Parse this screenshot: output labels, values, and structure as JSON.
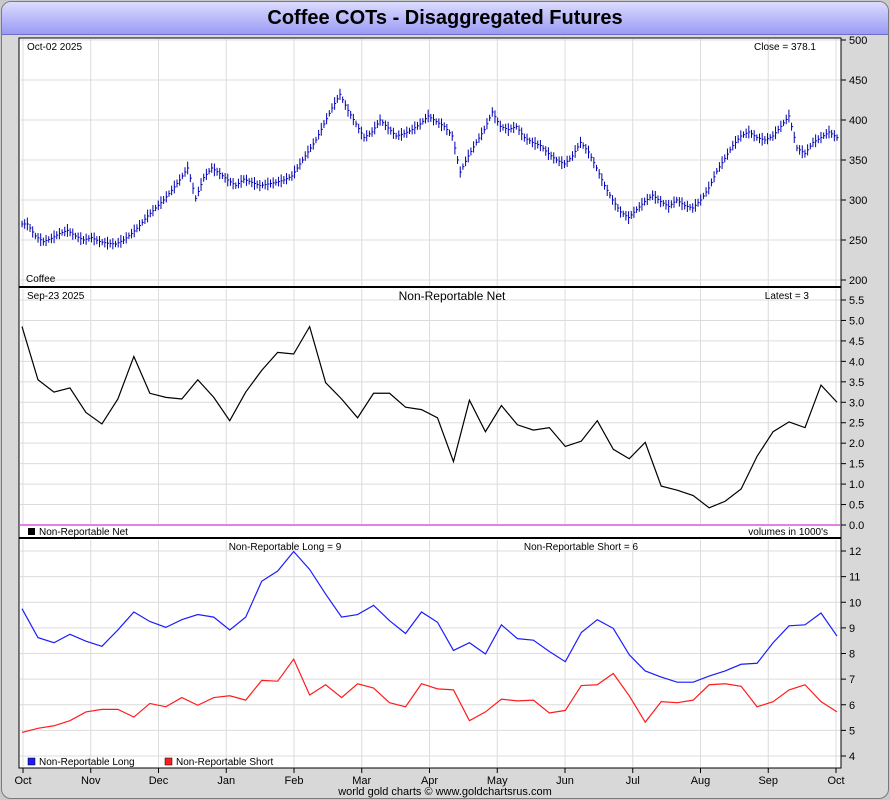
{
  "title": "Coffee COTs - Disaggregated Futures",
  "credit": "world gold charts © www.goldchartsrus.com",
  "x_axis": {
    "labels": [
      "Oct",
      "Nov",
      "Dec",
      "Jan",
      "Feb",
      "Mar",
      "Apr",
      "May",
      "Jun",
      "Jul",
      "Aug",
      "Sep",
      "Oct"
    ]
  },
  "colors": {
    "price": "#0000b0",
    "net": "#000000",
    "long": "#1c1cff",
    "short": "#ff1c1c",
    "zero_line": "#cc00cc",
    "grid": "#dcdcdc"
  },
  "chart_data": [
    {
      "type": "ohlc",
      "name": "price",
      "date_label": "Oct-02  2025",
      "value_label": "Close = 378.1",
      "series_label": "Coffee",
      "ylim": [
        200,
        500
      ],
      "yticks": [
        200,
        250,
        300,
        350,
        400,
        450,
        500
      ],
      "closes": [
        270,
        255,
        248,
        252,
        258,
        262,
        255,
        250,
        253,
        248,
        246,
        245,
        250,
        258,
        268,
        280,
        290,
        300,
        312,
        325,
        340,
        302,
        328,
        340,
        333,
        325,
        318,
        326,
        322,
        318,
        320,
        322,
        325,
        330,
        345,
        360,
        375,
        395,
        415,
        432,
        412,
        395,
        378,
        385,
        400,
        390,
        380,
        383,
        388,
        395,
        405,
        398,
        392,
        380,
        335,
        355,
        372,
        388,
        410,
        392,
        388,
        392,
        378,
        372,
        368,
        358,
        350,
        345,
        355,
        372,
        360,
        340,
        318,
        300,
        285,
        278,
        288,
        298,
        306,
        298,
        292,
        300,
        293,
        290,
        300,
        315,
        336,
        352,
        368,
        380,
        385,
        378,
        375,
        380,
        392,
        405,
        365,
        358,
        372,
        378,
        385,
        378
      ]
    },
    {
      "type": "line",
      "name": "Non-Reportable Net",
      "date_label": "Sep-23  2025",
      "title": "Non-Reportable Net",
      "value_label": "Latest = 3",
      "legend": "Non-Reportable Net",
      "units_label": "volumes in 1000's",
      "ylim": [
        0,
        5.5
      ],
      "yticks": [
        0.0,
        0.5,
        1.0,
        1.5,
        2.0,
        2.5,
        3.0,
        3.5,
        4.0,
        4.5,
        5.0,
        5.5
      ],
      "values": [
        4.85,
        3.55,
        3.25,
        3.35,
        2.75,
        2.47,
        3.08,
        4.12,
        3.22,
        3.12,
        3.08,
        3.55,
        3.12,
        2.55,
        3.25,
        3.78,
        4.22,
        4.18,
        4.85,
        3.48,
        3.08,
        2.62,
        3.22,
        3.22,
        2.88,
        2.82,
        2.62,
        1.55,
        3.05,
        2.28,
        2.92,
        2.45,
        2.32,
        2.38,
        1.92,
        2.05,
        2.55,
        1.85,
        1.62,
        2.02,
        0.95,
        0.85,
        0.72,
        0.42,
        0.58,
        0.88,
        1.68,
        2.28,
        2.52,
        2.38,
        3.42,
        3.0
      ]
    },
    {
      "type": "line",
      "name": "long-short",
      "ylim": [
        4,
        12
      ],
      "yticks": [
        4,
        5,
        6,
        7,
        8,
        9,
        10,
        11,
        12
      ],
      "series": [
        {
          "name": "Non-Reportable Long",
          "header_label": "Non-Reportable Long = 9",
          "values": [
            9.75,
            8.62,
            8.42,
            8.75,
            8.48,
            8.28,
            8.92,
            9.62,
            9.25,
            9.02,
            9.32,
            9.52,
            9.42,
            8.92,
            9.42,
            10.82,
            11.22,
            11.98,
            11.28,
            10.32,
            9.42,
            9.52,
            9.88,
            9.28,
            8.78,
            9.62,
            9.22,
            8.12,
            8.42,
            7.98,
            9.12,
            8.58,
            8.52,
            8.08,
            7.68,
            8.82,
            9.32,
            8.98,
            7.95,
            7.32,
            7.08,
            6.88,
            6.88,
            7.12,
            7.32,
            7.58,
            7.62,
            8.42,
            9.08,
            9.12,
            9.58,
            8.68
          ]
        },
        {
          "name": "Non-Reportable Short",
          "header_label": "Non-Reportable Short = 6",
          "values": [
            4.92,
            5.08,
            5.18,
            5.38,
            5.72,
            5.82,
            5.82,
            5.52,
            6.05,
            5.92,
            6.28,
            5.98,
            6.28,
            6.35,
            6.18,
            6.95,
            6.92,
            7.78,
            6.38,
            6.78,
            6.28,
            6.82,
            6.65,
            6.08,
            5.92,
            6.82,
            6.62,
            6.58,
            5.38,
            5.72,
            6.22,
            6.15,
            6.18,
            5.68,
            5.78,
            6.75,
            6.78,
            7.22,
            6.35,
            5.32,
            6.12,
            6.08,
            6.18,
            6.78,
            6.82,
            6.72,
            5.92,
            6.12,
            6.58,
            6.78,
            6.12,
            5.72
          ]
        }
      ]
    }
  ]
}
